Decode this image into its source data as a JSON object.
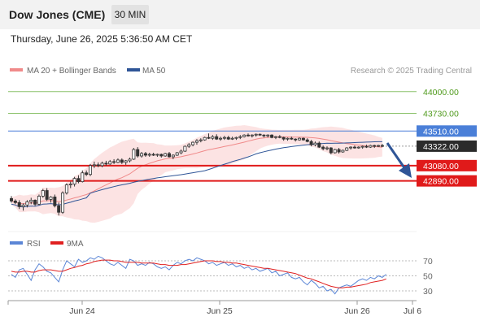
{
  "header": {
    "title": "Dow Jones (CME)",
    "interval": "30 MIN",
    "datetime": "Thursday, June 26, 2025 5:36:50 AM CET"
  },
  "colors": {
    "bollinger": "#f08a8a",
    "bollinger_fill": "#fbdcdc",
    "ma50": "#2f5597",
    "resistance_green": "#8cc26b",
    "resistance_green_text": "#4f9a1c",
    "ma_line": "#4a7fd8",
    "support": "#e01a1a",
    "current_tag": "#2b2b2b",
    "rsi": "#5b86d6",
    "rsi_ma": "#e02020",
    "arrow": "#2f5597"
  },
  "legend": [
    {
      "label": "MA 20 + Bollinger Bands",
      "color": "#f08a8a"
    },
    {
      "label": "MA 50",
      "color": "#2f5597"
    }
  ],
  "copyright": "Research © 2025 Trading Central",
  "rsi_legend": [
    {
      "label": "RSI",
      "color": "#5b86d6"
    },
    {
      "label": "9MA",
      "color": "#e02020"
    }
  ],
  "chart_data": {
    "type": "candlestick",
    "x_tick_labels": [
      "Jun 24",
      "Jun 25",
      "Jun 26",
      "Jul 6"
    ],
    "price_levels": [
      {
        "value": 44000.0,
        "label": "44000.00",
        "kind": "resistance"
      },
      {
        "value": 43730.0,
        "label": "43730.00",
        "kind": "resistance"
      },
      {
        "value": 43510.0,
        "label": "43510.00",
        "kind": "ma"
      },
      {
        "value": 43322.0,
        "label": "43322.00",
        "kind": "current"
      },
      {
        "value": 43080.0,
        "label": "43080.00",
        "kind": "support"
      },
      {
        "value": 42890.0,
        "label": "42890.00",
        "kind": "support"
      }
    ],
    "price_ylim": [
      42290,
      44180
    ],
    "candles": [
      [
        42670,
        42700,
        42620,
        42640
      ],
      [
        42640,
        42660,
        42600,
        42620
      ],
      [
        42620,
        42650,
        42540,
        42570
      ],
      [
        42570,
        42610,
        42520,
        42590
      ],
      [
        42590,
        42650,
        42560,
        42630
      ],
      [
        42630,
        42680,
        42600,
        42650
      ],
      [
        42650,
        42660,
        42580,
        42600
      ],
      [
        42600,
        42720,
        42590,
        42700
      ],
      [
        42700,
        42790,
        42680,
        42770
      ],
      [
        42770,
        42800,
        42640,
        42660
      ],
      [
        42660,
        42700,
        42620,
        42690
      ],
      [
        42690,
        42720,
        42560,
        42580
      ],
      [
        42580,
        42620,
        42460,
        42500
      ],
      [
        42500,
        42760,
        42480,
        42740
      ],
      [
        42740,
        42860,
        42720,
        42840
      ],
      [
        42840,
        42880,
        42800,
        42850
      ],
      [
        42850,
        42940,
        42820,
        42920
      ],
      [
        42920,
        42960,
        42860,
        42880
      ],
      [
        42880,
        43020,
        42870,
        42990
      ],
      [
        42990,
        43020,
        42950,
        42970
      ],
      [
        42970,
        43100,
        42950,
        43080
      ],
      [
        43080,
        43130,
        43050,
        43090
      ],
      [
        43090,
        43120,
        43060,
        43080
      ],
      [
        43080,
        43130,
        43060,
        43110
      ],
      [
        43110,
        43140,
        43080,
        43100
      ],
      [
        43100,
        43150,
        43090,
        43130
      ],
      [
        43130,
        43160,
        43100,
        43120
      ],
      [
        43120,
        43170,
        43110,
        43150
      ],
      [
        43150,
        43170,
        43100,
        43120
      ],
      [
        43120,
        43150,
        43090,
        43140
      ],
      [
        43140,
        43180,
        43120,
        43160
      ],
      [
        43160,
        43300,
        43150,
        43280
      ],
      [
        43280,
        43310,
        43180,
        43200
      ],
      [
        43200,
        43250,
        43180,
        43230
      ],
      [
        43230,
        43250,
        43190,
        43210
      ],
      [
        43210,
        43240,
        43190,
        43220
      ],
      [
        43220,
        43240,
        43200,
        43210
      ],
      [
        43210,
        43230,
        43190,
        43220
      ],
      [
        43220,
        43230,
        43180,
        43200
      ],
      [
        43200,
        43240,
        43190,
        43230
      ],
      [
        43230,
        43250,
        43180,
        43190
      ],
      [
        43190,
        43220,
        43160,
        43210
      ],
      [
        43210,
        43250,
        43200,
        43240
      ],
      [
        43240,
        43280,
        43220,
        43260
      ],
      [
        43260,
        43330,
        43250,
        43320
      ],
      [
        43320,
        43360,
        43300,
        43340
      ],
      [
        43340,
        43380,
        43320,
        43370
      ],
      [
        43370,
        43410,
        43340,
        43390
      ],
      [
        43390,
        43420,
        43370,
        43400
      ],
      [
        43400,
        43440,
        43390,
        43430
      ],
      [
        43430,
        43480,
        43410,
        43420
      ],
      [
        43420,
        43460,
        43400,
        43440
      ],
      [
        43440,
        43470,
        43400,
        43410
      ],
      [
        43410,
        43440,
        43390,
        43420
      ],
      [
        43420,
        43450,
        43400,
        43430
      ],
      [
        43430,
        43450,
        43400,
        43410
      ],
      [
        43410,
        43440,
        43400,
        43420
      ],
      [
        43420,
        43440,
        43400,
        43430
      ],
      [
        43430,
        43460,
        43410,
        43440
      ],
      [
        43440,
        43470,
        43430,
        43460
      ],
      [
        43460,
        43480,
        43440,
        43450
      ],
      [
        43450,
        43470,
        43430,
        43460
      ],
      [
        43460,
        43480,
        43440,
        43470
      ],
      [
        43470,
        43480,
        43450,
        43460
      ],
      [
        43460,
        43470,
        43430,
        43450
      ],
      [
        43450,
        43470,
        43430,
        43460
      ],
      [
        43460,
        43470,
        43420,
        43430
      ],
      [
        43430,
        43450,
        43410,
        43440
      ],
      [
        43440,
        43460,
        43420,
        43430
      ],
      [
        43430,
        43440,
        43390,
        43410
      ],
      [
        43410,
        43430,
        43390,
        43420
      ],
      [
        43420,
        43440,
        43400,
        43410
      ],
      [
        43410,
        43420,
        43380,
        43400
      ],
      [
        43400,
        43430,
        43390,
        43420
      ],
      [
        43420,
        43430,
        43390,
        43400
      ],
      [
        43400,
        43420,
        43370,
        43380
      ],
      [
        43380,
        43400,
        43320,
        43340
      ],
      [
        43340,
        43380,
        43320,
        43360
      ],
      [
        43360,
        43380,
        43300,
        43310
      ],
      [
        43310,
        43330,
        43270,
        43290
      ],
      [
        43290,
        43320,
        43270,
        43300
      ],
      [
        43300,
        43310,
        43220,
        43240
      ],
      [
        43240,
        43290,
        43230,
        43280
      ],
      [
        43280,
        43300,
        43230,
        43250
      ],
      [
        43250,
        43280,
        43240,
        43270
      ],
      [
        43270,
        43310,
        43260,
        43300
      ],
      [
        43300,
        43320,
        43280,
        43310
      ],
      [
        43310,
        43330,
        43290,
        43300
      ],
      [
        43300,
        43320,
        43290,
        43310
      ],
      [
        43310,
        43330,
        43290,
        43320
      ],
      [
        43320,
        43340,
        43300,
        43310
      ],
      [
        43310,
        43340,
        43300,
        43330
      ],
      [
        43330,
        43340,
        43300,
        43320
      ],
      [
        43320,
        43340,
        43310,
        43330
      ],
      [
        43330,
        43350,
        43310,
        43322
      ]
    ],
    "rsi": {
      "ylim": [
        0,
        100
      ],
      "levels": [
        70,
        50,
        30
      ],
      "rsi_values": [
        52,
        48,
        58,
        60,
        52,
        44,
        58,
        66,
        62,
        56,
        54,
        48,
        42,
        58,
        70,
        66,
        62,
        72,
        68,
        70,
        74,
        72,
        76,
        74,
        70,
        66,
        64,
        68,
        64,
        60,
        72,
        70,
        64,
        66,
        64,
        68,
        66,
        62,
        60,
        62,
        58,
        64,
        68,
        66,
        70,
        72,
        70,
        74,
        72,
        70,
        66,
        68,
        64,
        66,
        68,
        64,
        66,
        62,
        64,
        60,
        62,
        58,
        60,
        56,
        58,
        60,
        54,
        56,
        50,
        52,
        54,
        48,
        46,
        48,
        42,
        38,
        44,
        40,
        34,
        36,
        30,
        32,
        26,
        34,
        36,
        38,
        36,
        40,
        44,
        46,
        44,
        48,
        46,
        50,
        48,
        52
      ],
      "ma_values": [
        56,
        55,
        55,
        56,
        56,
        55,
        55,
        57,
        58,
        58,
        58,
        57,
        56,
        56,
        58,
        60,
        61,
        63,
        64,
        66,
        67,
        69,
        70,
        71,
        71,
        71,
        70,
        70,
        69,
        68,
        68,
        68,
        68,
        67,
        67,
        67,
        67,
        66,
        65,
        65,
        64,
        64,
        64,
        65,
        65,
        66,
        67,
        68,
        69,
        70,
        70,
        70,
        69,
        69,
        68,
        68,
        67,
        67,
        66,
        65,
        64,
        63,
        62,
        61,
        60,
        60,
        59,
        58,
        57,
        56,
        55,
        54,
        53,
        51,
        49,
        47,
        46,
        44,
        42,
        40,
        38,
        36,
        35,
        34,
        34,
        35,
        35,
        36,
        37,
        38,
        39,
        41,
        42,
        43,
        44,
        46
      ]
    }
  }
}
